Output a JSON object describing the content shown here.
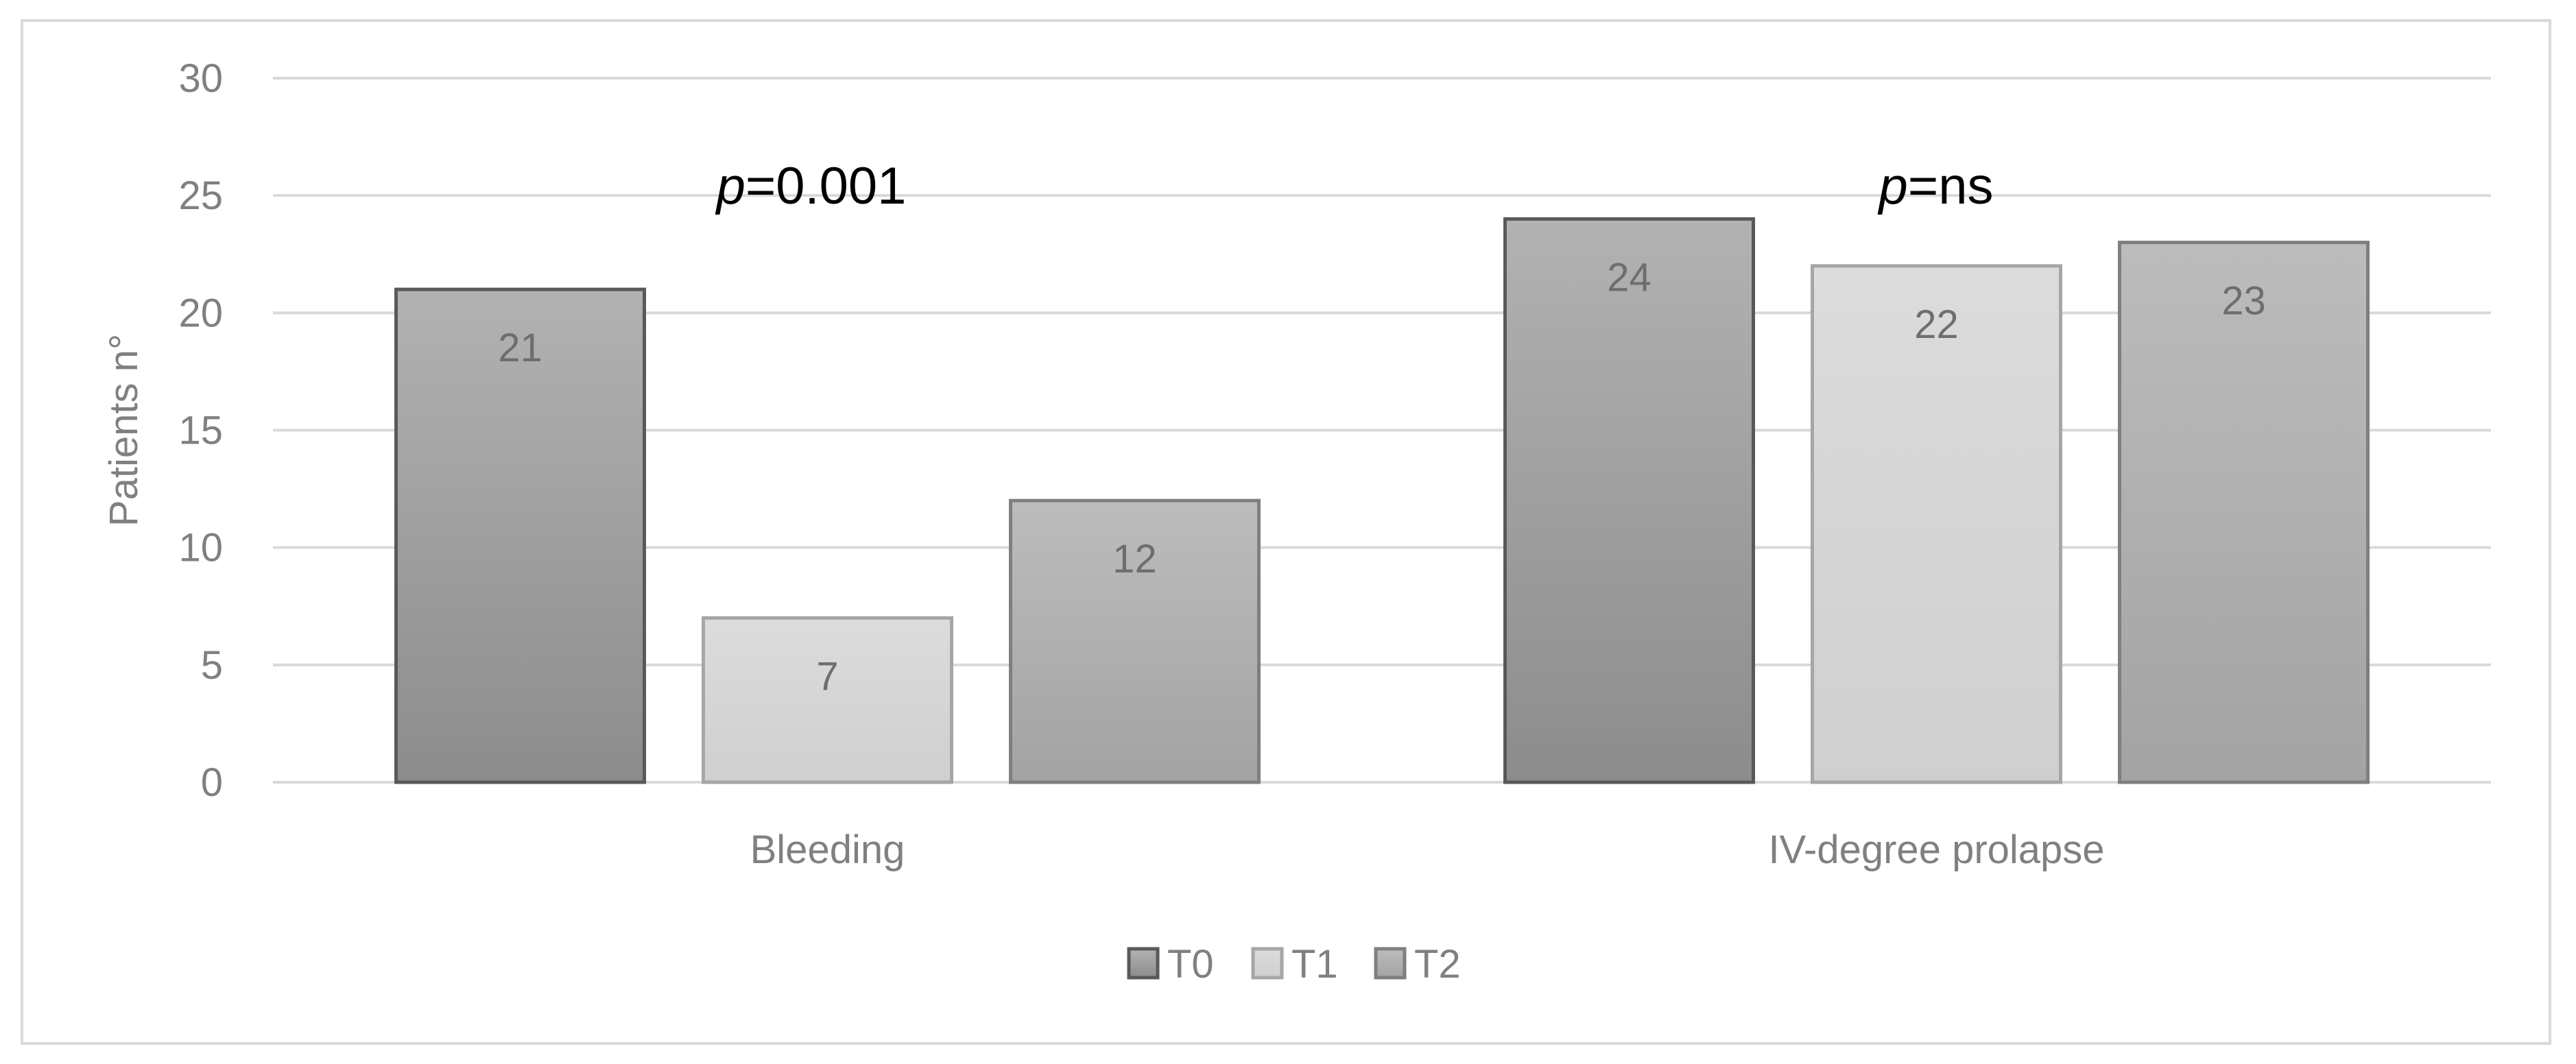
{
  "chart_data": {
    "type": "bar",
    "categories": [
      "Bleeding",
      "IV-degree prolapse"
    ],
    "series": [
      {
        "name": "T0",
        "values": [
          21,
          24
        ],
        "color": "#a0a0a0",
        "stroke": "#595959"
      },
      {
        "name": "T1",
        "values": [
          7,
          22
        ],
        "color": "#d9d9d9",
        "stroke": "#a6a6a6"
      },
      {
        "name": "T2",
        "values": [
          12,
          23
        ],
        "color": "#b3b3b3",
        "stroke": "#7f7f7f"
      }
    ],
    "title": "",
    "xlabel": "",
    "ylabel": "Patients n°",
    "ylim": [
      0,
      30
    ],
    "yticks": [
      0,
      5,
      10,
      15,
      20,
      25,
      30
    ],
    "grid": true,
    "legend": "bottom-center",
    "annotations": [
      {
        "category": "Bleeding",
        "italic": "p",
        "rest": "=0.001"
      },
      {
        "category": "IV-degree prolapse",
        "italic": "p",
        "rest": "=ns"
      }
    ]
  }
}
